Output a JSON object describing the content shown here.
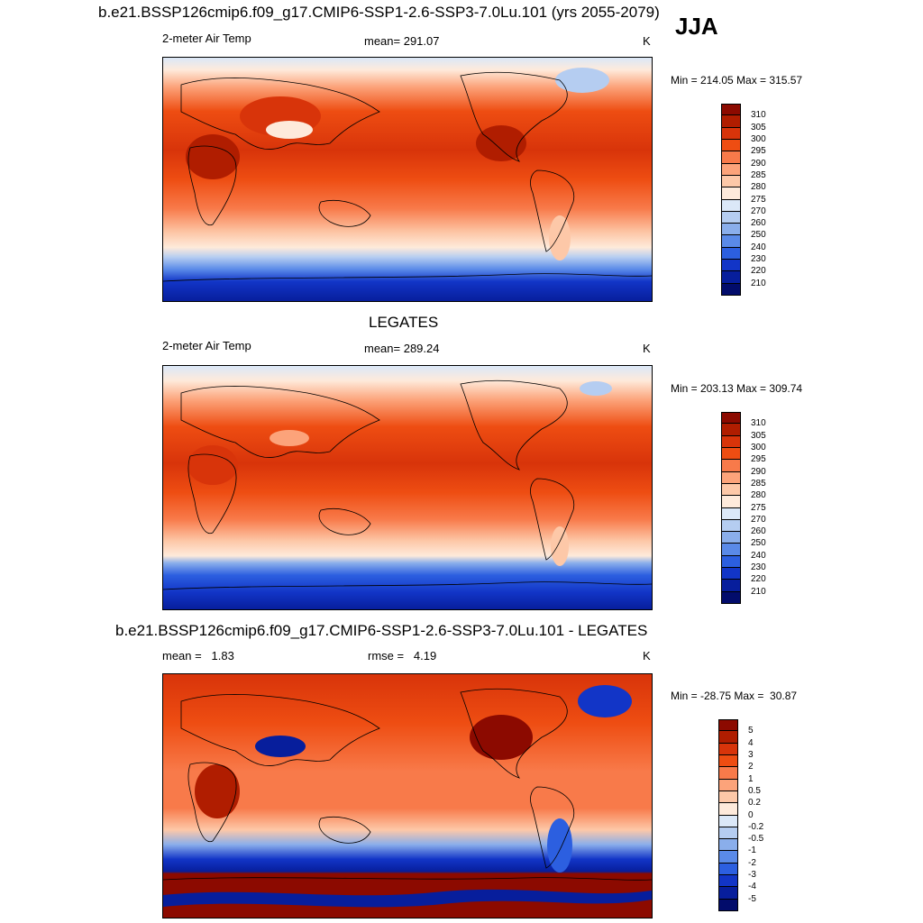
{
  "figure": {
    "title": "b.e21.BSSP126cmip6.f09_g17.CMIP6-SSP1-2.6-SSP3-7.0Lu.101 (yrs 2055-2079)",
    "season": "JJA"
  },
  "panels": [
    {
      "subtitle": "",
      "left": "2-meter Air Temp",
      "center": "mean= 291.07",
      "right": "K",
      "minmax": "Min = 214.05 Max = 315.57",
      "levels": [
        "310",
        "305",
        "300",
        "295",
        "290",
        "285",
        "280",
        "275",
        "270",
        "260",
        "250",
        "240",
        "230",
        "220",
        "210"
      ],
      "colors": [
        "#8c0a00",
        "#b01d00",
        "#d8340a",
        "#ee4d12",
        "#f87a4a",
        "#fca37a",
        "#fdc8a8",
        "#feeadb",
        "#dbe8f8",
        "#b5cdf1",
        "#8aaeeb",
        "#5a8ae8",
        "#2c5fe0",
        "#1235c7",
        "#071e9c",
        "#020c6b"
      ]
    },
    {
      "subtitle": "LEGATES",
      "left": "2-meter Air Temp",
      "center": "mean= 289.24",
      "right": "K",
      "minmax": "Min = 203.13 Max = 309.74",
      "levels": [
        "310",
        "305",
        "300",
        "295",
        "290",
        "285",
        "280",
        "275",
        "270",
        "260",
        "250",
        "240",
        "230",
        "220",
        "210"
      ],
      "colors": [
        "#8c0a00",
        "#b01d00",
        "#d8340a",
        "#ee4d12",
        "#f87a4a",
        "#fca37a",
        "#fdc8a8",
        "#feeadb",
        "#dbe8f8",
        "#b5cdf1",
        "#8aaeeb",
        "#5a8ae8",
        "#2c5fe0",
        "#1235c7",
        "#071e9c",
        "#020c6b"
      ]
    },
    {
      "subtitle": "b.e21.BSSP126cmip6.f09_g17.CMIP6-SSP1-2.6-SSP3-7.0Lu.101 - LEGATES",
      "left": "mean =   1.83",
      "center": "rmse =   4.19",
      "right": "K",
      "minmax": "Min = -28.75 Max =  30.87",
      "levels": [
        "5",
        "4",
        "3",
        "2",
        "1",
        "0.5",
        "0.2",
        "0",
        "-0.2",
        "-0.5",
        "-1",
        "-2",
        "-3",
        "-4",
        "-5"
      ],
      "colors": [
        "#8c0a00",
        "#b01d00",
        "#d8340a",
        "#ee4d12",
        "#f87a4a",
        "#fca37a",
        "#fdc8a8",
        "#feeadb",
        "#dbe8f8",
        "#b5cdf1",
        "#8aaeeb",
        "#5a8ae8",
        "#2c5fe0",
        "#1235c7",
        "#071e9c",
        "#020c6b"
      ]
    }
  ]
}
